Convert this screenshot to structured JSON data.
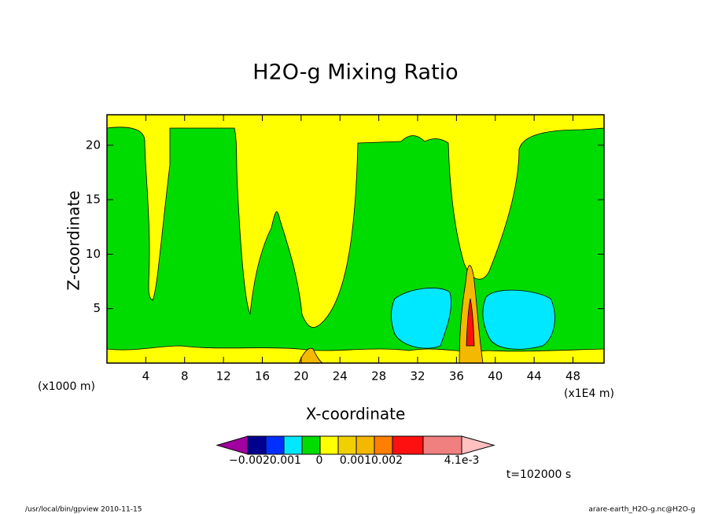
{
  "chart_data": {
    "type": "contour",
    "title": "H2O-g Mixing Ratio",
    "xlabel": "X-coordinate",
    "ylabel": "Z-coordinate",
    "x_unit_left": "(x1000 m)",
    "x_unit_right": "(x1E4 m)",
    "xlim": [
      0,
      51.2
    ],
    "xticks": [
      4,
      8,
      12,
      16,
      20,
      24,
      28,
      32,
      36,
      40,
      44,
      48
    ],
    "ylim": [
      0,
      22.8
    ],
    "yticks": [
      5,
      10,
      15,
      20
    ],
    "colorbar": {
      "colors": [
        "#a000a0",
        "#000090",
        "#0030ff",
        "#00e8ff",
        "#00dc00",
        "#ffff00",
        "#f0d000",
        "#f5b800",
        "#ff7f00",
        "#ff1010",
        "#f08080",
        "#ffc0c0"
      ],
      "labels": [
        "−0.0020.001",
        "0",
        "0.0010.002",
        "4.1e-3"
      ]
    },
    "time_label": "t=102000 s",
    "footer_left": "/usr/local/bin/gpview  2010-11-15",
    "footer_right": "arare-earth_H2O-g.nc@H2O-g"
  }
}
